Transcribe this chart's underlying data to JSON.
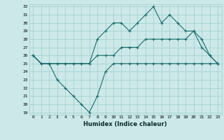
{
  "xlabel": "Humidex (Indice chaleur)",
  "bg_color": "#cce8e8",
  "line_color": "#1a6b6b",
  "grid_color": "#9ecece",
  "x": [
    0,
    1,
    2,
    3,
    4,
    5,
    6,
    7,
    8,
    9,
    10,
    11,
    12,
    13,
    14,
    15,
    16,
    17,
    18,
    19,
    20,
    21,
    22,
    23
  ],
  "y_max": [
    26,
    25,
    25,
    25,
    25,
    25,
    25,
    25,
    28,
    29,
    30,
    30,
    29,
    30,
    31,
    32,
    30,
    31,
    30,
    29,
    29,
    27,
    26,
    25
  ],
  "y_mean": [
    26,
    25,
    25,
    25,
    25,
    25,
    25,
    25,
    26,
    26,
    26,
    27,
    27,
    27,
    28,
    28,
    28,
    28,
    28,
    28,
    29,
    28,
    26,
    25
  ],
  "y_min": [
    26,
    25,
    25,
    23,
    22,
    21,
    20,
    19,
    21,
    24,
    25,
    25,
    25,
    25,
    25,
    25,
    25,
    25,
    25,
    25,
    25,
    25,
    25,
    25
  ],
  "ylim_min": 19,
  "ylim_max": 32,
  "yticks": [
    19,
    20,
    21,
    22,
    23,
    24,
    25,
    26,
    27,
    28,
    29,
    30,
    31,
    32
  ],
  "xticks": [
    0,
    1,
    2,
    3,
    4,
    5,
    6,
    7,
    8,
    9,
    10,
    11,
    12,
    13,
    14,
    15,
    16,
    17,
    18,
    19,
    20,
    21,
    22,
    23
  ]
}
